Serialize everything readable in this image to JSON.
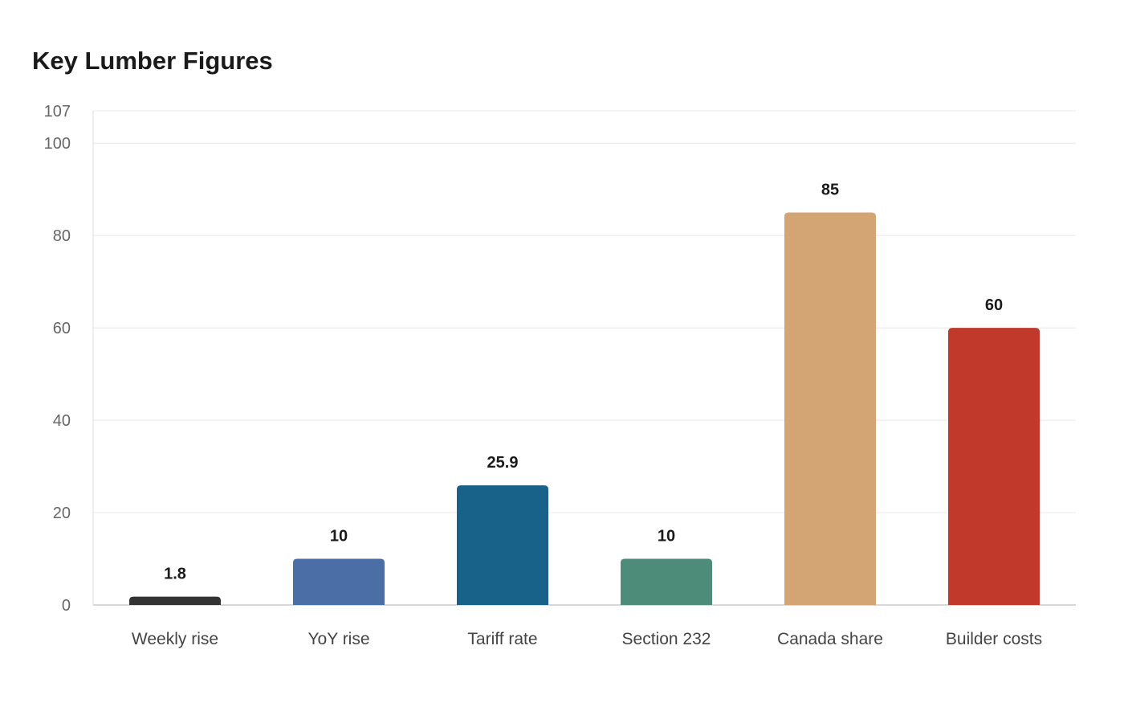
{
  "chart_data": {
    "type": "bar",
    "title": "Key Lumber Figures",
    "xlabel": "",
    "ylabel": "",
    "categories": [
      "Weekly rise",
      "YoY rise",
      "Tariff rate",
      "Section 232",
      "Canada share",
      "Builder costs"
    ],
    "values": [
      1.8,
      10,
      25.9,
      10,
      85,
      60
    ],
    "value_labels": [
      "1.8",
      "10",
      "25.9",
      "10",
      "85",
      "60"
    ],
    "colors": [
      "#333333",
      "#4a6ea5",
      "#186189",
      "#4e8c7a",
      "#d4a574",
      "#c1392b"
    ],
    "ylim": [
      0,
      107
    ],
    "yticks": [
      0,
      20,
      40,
      60,
      80,
      100,
      107
    ],
    "grid": true,
    "legend": "none"
  }
}
